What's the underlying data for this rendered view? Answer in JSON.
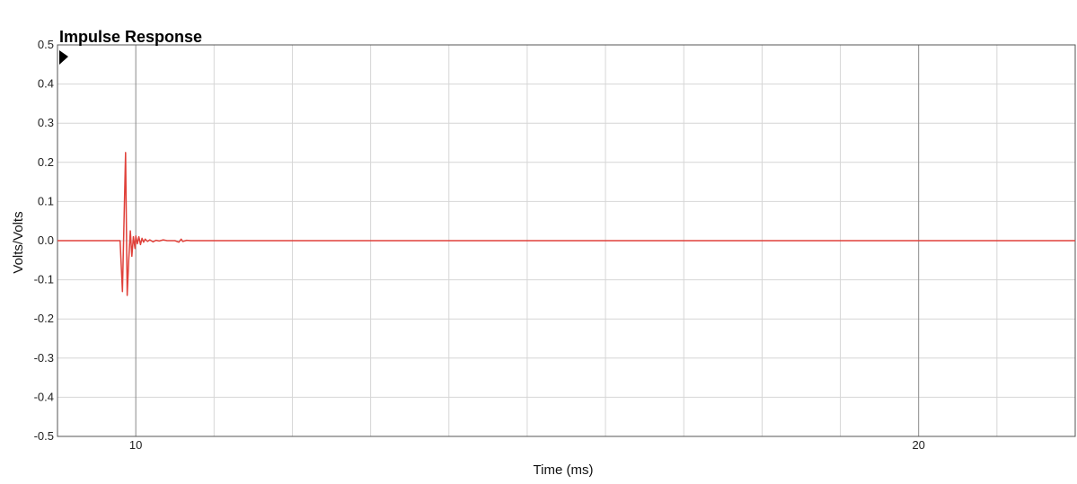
{
  "chart_data": {
    "type": "line",
    "title": "Impulse Response",
    "xlabel": "Time (ms)",
    "ylabel": "Volts/Volts",
    "xlim": [
      9.0,
      22.0
    ],
    "ylim": [
      -0.5,
      0.5
    ],
    "y_ticks": [
      "0.5",
      "0.4",
      "0.3",
      "0.2",
      "0.1",
      "0.0",
      "-0.1",
      "-0.2",
      "-0.3",
      "-0.4",
      "-0.5"
    ],
    "x_ticks": [
      "10",
      "20"
    ],
    "grid": true,
    "colors": {
      "series": "#e0413a",
      "grid": "#d6d6d6",
      "major_grid": "#8a8a8a",
      "frame": "#555555"
    },
    "series": [
      {
        "x": [
          9.0,
          9.5,
          9.8,
          9.83,
          9.87,
          9.89,
          9.91,
          9.93,
          9.95,
          9.97,
          9.99,
          10.0,
          10.02,
          10.04,
          10.06,
          10.08,
          10.1,
          10.12,
          10.15,
          10.18,
          10.22,
          10.26,
          10.3,
          10.35,
          10.4,
          10.5,
          10.55,
          10.58,
          10.6,
          10.65,
          10.7,
          11.0,
          11.5,
          12.0,
          13.0,
          15.0,
          18.0,
          20.0,
          22.0
        ],
        "values": [
          0.0,
          0.0,
          0.0,
          -0.13,
          0.225,
          -0.14,
          -0.05,
          0.025,
          -0.04,
          0.01,
          -0.02,
          0.012,
          -0.008,
          0.01,
          -0.01,
          0.006,
          -0.004,
          0.004,
          -0.002,
          0.002,
          -0.003,
          0.001,
          -0.001,
          0.002,
          0.0,
          0.0,
          -0.004,
          0.004,
          -0.002,
          0.001,
          0.0,
          0.0,
          0.0,
          0.0,
          0.0,
          0.0,
          0.0,
          0.0,
          0.0
        ]
      }
    ]
  }
}
